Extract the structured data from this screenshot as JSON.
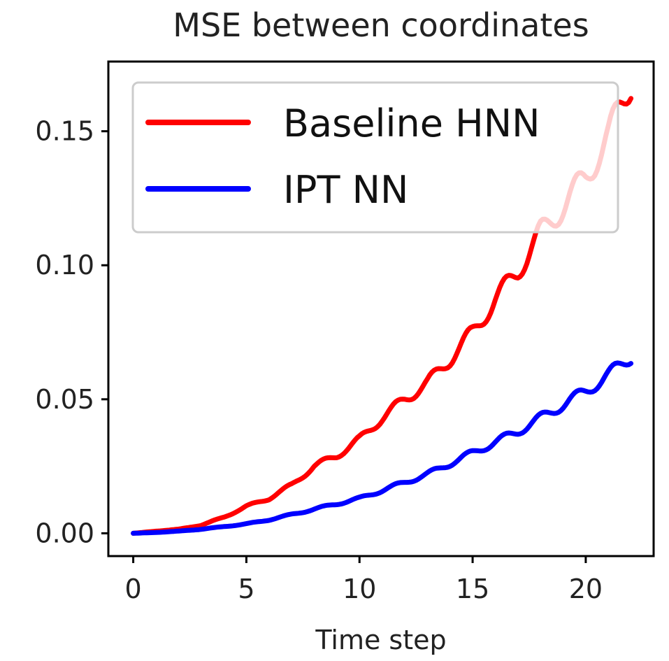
{
  "chart_data": {
    "type": "line",
    "title": "MSE between coordinates",
    "xlabel": "Time step",
    "ylabel": "",
    "xlim": [
      -1.1,
      23
    ],
    "ylim": [
      -0.0085,
      0.176
    ],
    "xticks": [
      0,
      5,
      10,
      15,
      20
    ],
    "xtick_labels": [
      "0",
      "5",
      "10",
      "15",
      "20"
    ],
    "yticks": [
      0.0,
      0.05,
      0.1,
      0.15
    ],
    "ytick_labels": [
      "0.00",
      "0.05",
      "0.10",
      "0.15"
    ],
    "grid": false,
    "legend_position": "upper left",
    "x": [
      0,
      1,
      2,
      3,
      4,
      5,
      6,
      7,
      8,
      9,
      10,
      11,
      12,
      13,
      14,
      15,
      16,
      17,
      18,
      19,
      20,
      21,
      22
    ],
    "series": [
      {
        "name": "Baseline HNN",
        "color": "#ff0000",
        "values": [
          0.0,
          0.0008,
          0.0015,
          0.003,
          0.006,
          0.01,
          0.013,
          0.018,
          0.025,
          0.029,
          0.035,
          0.043,
          0.05,
          0.056,
          0.065,
          0.075,
          0.087,
          0.098,
          0.112,
          0.122,
          0.133,
          0.148,
          0.169
        ]
      },
      {
        "name": "IPT NN",
        "color": "#0000ff",
        "values": [
          0.0,
          0.0003,
          0.0008,
          0.0015,
          0.0025,
          0.0035,
          0.005,
          0.007,
          0.009,
          0.011,
          0.013,
          0.016,
          0.019,
          0.022,
          0.026,
          0.03,
          0.034,
          0.038,
          0.043,
          0.048,
          0.053,
          0.059,
          0.066
        ]
      }
    ]
  }
}
